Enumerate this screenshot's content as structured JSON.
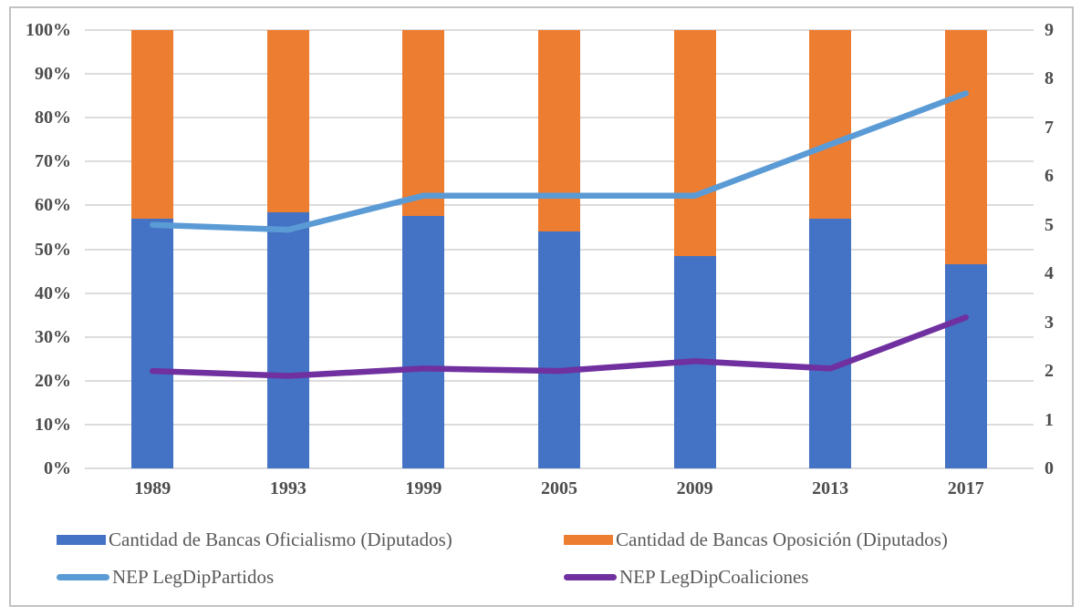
{
  "chart_data": {
    "type": "combo-stacked-bar-with-lines",
    "categories": [
      "1989",
      "1993",
      "1999",
      "2005",
      "2009",
      "2013",
      "2017"
    ],
    "series": [
      {
        "name": "Cantidad de Bancas Oficialismo (Diputados)",
        "type": "bar",
        "axis": "left",
        "color": "#4472C4",
        "values": [
          57,
          58.5,
          57.5,
          54,
          48.5,
          57,
          46.5
        ]
      },
      {
        "name": "Cantidad de Bancas Oposición (Diputados)",
        "type": "bar",
        "axis": "left",
        "color": "#ED7D31",
        "values": [
          43,
          41.5,
          42.5,
          46,
          51.5,
          43,
          53.5
        ]
      },
      {
        "name": "NEP LegDipPartidos",
        "type": "line",
        "axis": "right",
        "color": "#5B9BD5",
        "values": [
          5.0,
          4.9,
          5.6,
          5.6,
          5.6,
          6.65,
          7.7
        ]
      },
      {
        "name": "NEP LegDipCoaliciones",
        "type": "line",
        "axis": "right",
        "color": "#7030A0",
        "values": [
          2.0,
          1.9,
          2.05,
          2.0,
          2.2,
          2.05,
          3.1
        ]
      }
    ],
    "left_axis": {
      "min": 0,
      "max": 100,
      "step": 10,
      "unit": "%",
      "ticks": [
        "100%",
        "90%",
        "80%",
        "70%",
        "60%",
        "50%",
        "40%",
        "30%",
        "20%",
        "10%",
        "0%"
      ]
    },
    "right_axis": {
      "min": 0,
      "max": 9,
      "step": 1,
      "ticks": [
        "9",
        "8",
        "7",
        "6",
        "5",
        "4",
        "3",
        "2",
        "1",
        "0"
      ]
    },
    "grid": "horizontal",
    "legend_position": "bottom",
    "title": "",
    "xlabel": "",
    "ylabel": ""
  },
  "legend": {
    "items": [
      {
        "label": "Cantidad de Bancas Oficialismo (Diputados)",
        "swatch": "rect",
        "color": "#4472C4"
      },
      {
        "label": "Cantidad de Bancas Oposición (Diputados)",
        "swatch": "rect",
        "color": "#ED7D31"
      },
      {
        "label": "NEP LegDipPartidos",
        "swatch": "line",
        "color": "#5B9BD5"
      },
      {
        "label": "NEP LegDipCoaliciones",
        "swatch": "line",
        "color": "#7030A0"
      }
    ]
  },
  "colors": {
    "gridline": "#dcdcdc",
    "frame_border": "#c2c2c2",
    "axis_text": "#4d4d4d",
    "legend_text": "#595959"
  }
}
